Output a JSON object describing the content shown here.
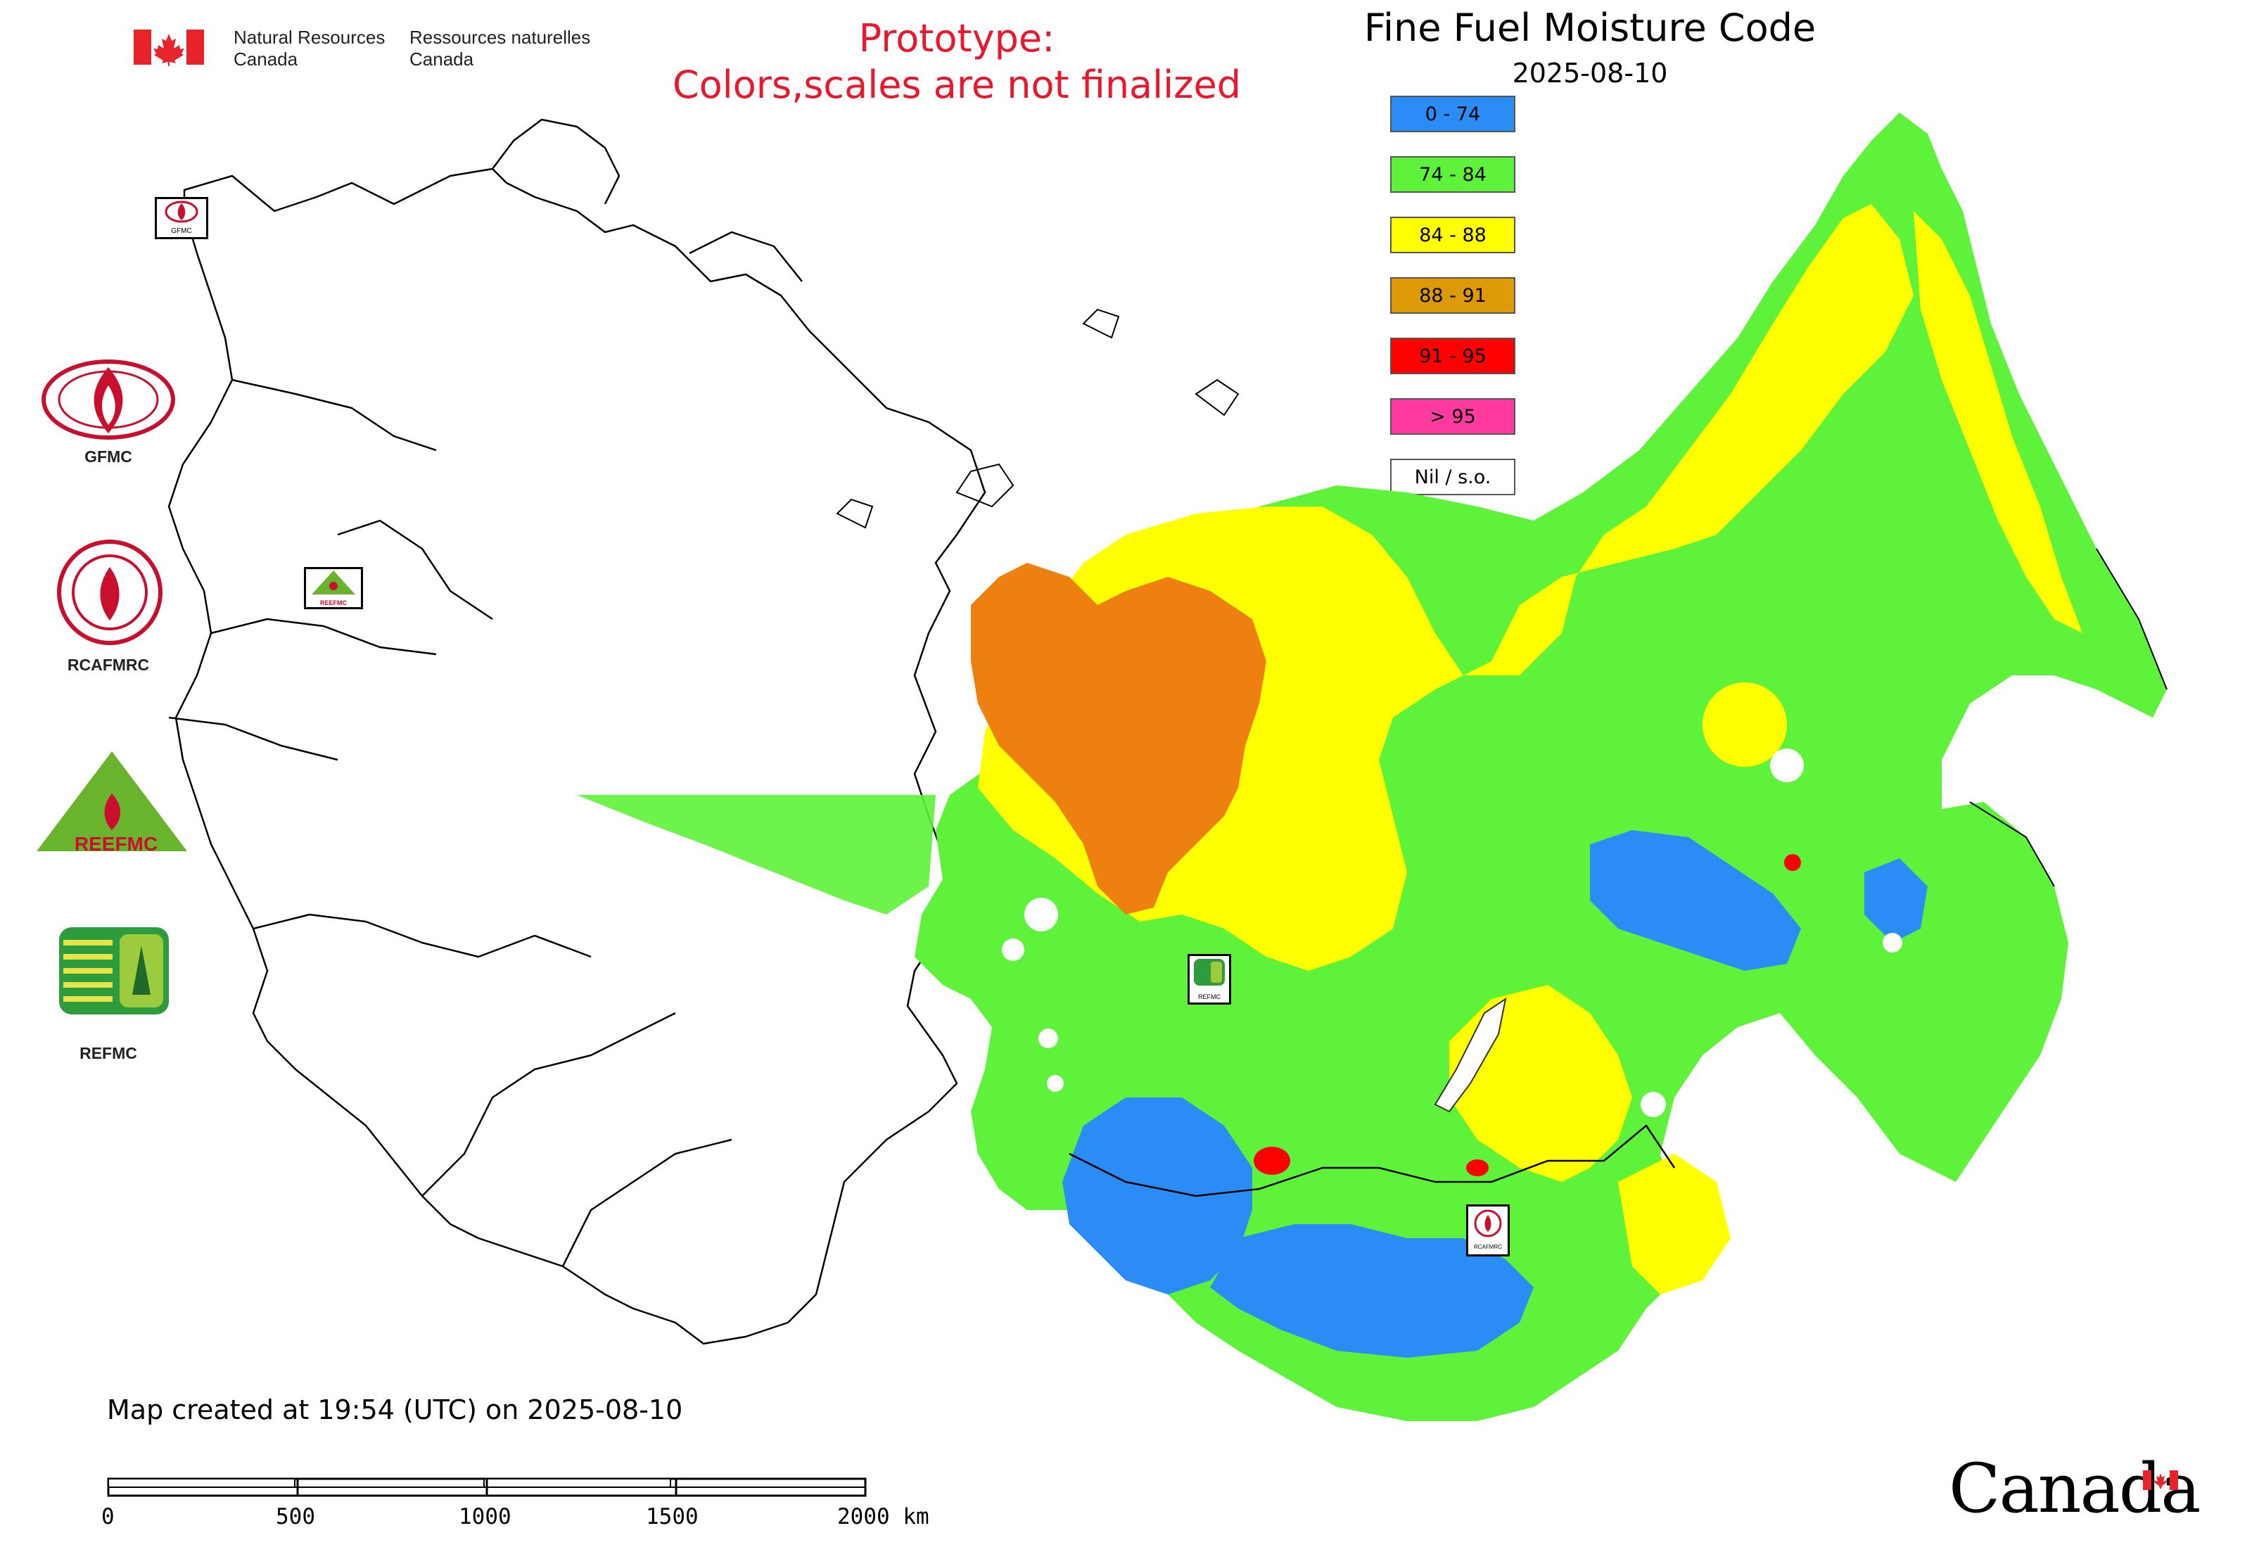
{
  "header": {
    "agency_en_line1": "Natural Resources",
    "agency_en_line2": "Canada",
    "agency_fr_line1": "Ressources naturelles",
    "agency_fr_line2": "Canada",
    "prototype_line1": "Prototype:",
    "prototype_line2": "Colors,scales are not finalized",
    "title": "Fine Fuel Moisture Code",
    "date": "2025-08-10"
  },
  "legend": {
    "items": [
      {
        "label": "0 - 74",
        "color": "#2b8cf5"
      },
      {
        "label": "74 - 84",
        "color": "#5ef23a"
      },
      {
        "label": "84 - 88",
        "color": "#ffff00"
      },
      {
        "label": "88 - 91",
        "color": "#dd9a06"
      },
      {
        "label": "91 - 95",
        "color": "#ff0000"
      },
      {
        "label": "> 95",
        "color": "#ff3b9f"
      },
      {
        "label": "Nil / s.o.",
        "color": "#ffffff"
      }
    ]
  },
  "logos": {
    "gfmc": "GFMC",
    "rcafmrc": "RCAFMRC",
    "reefmc_text": "REEFMC",
    "refmc": "REFMC",
    "map_badges": [
      "GFMC",
      "REEFMC",
      "REFMC",
      "RCAFMRC"
    ]
  },
  "footer": {
    "created": "Map created at 19:54 (UTC) on 2025-08-10",
    "scale_ticks": [
      "0",
      "500",
      "1000",
      "1500",
      "2000 km"
    ],
    "wordmark": "Canada"
  },
  "colors": {
    "blue": "#2b8cf5",
    "green": "#5ef23a",
    "yellow": "#ffff00",
    "orange": "#ee8010",
    "red": "#ff0000",
    "boundary": "#000000"
  }
}
